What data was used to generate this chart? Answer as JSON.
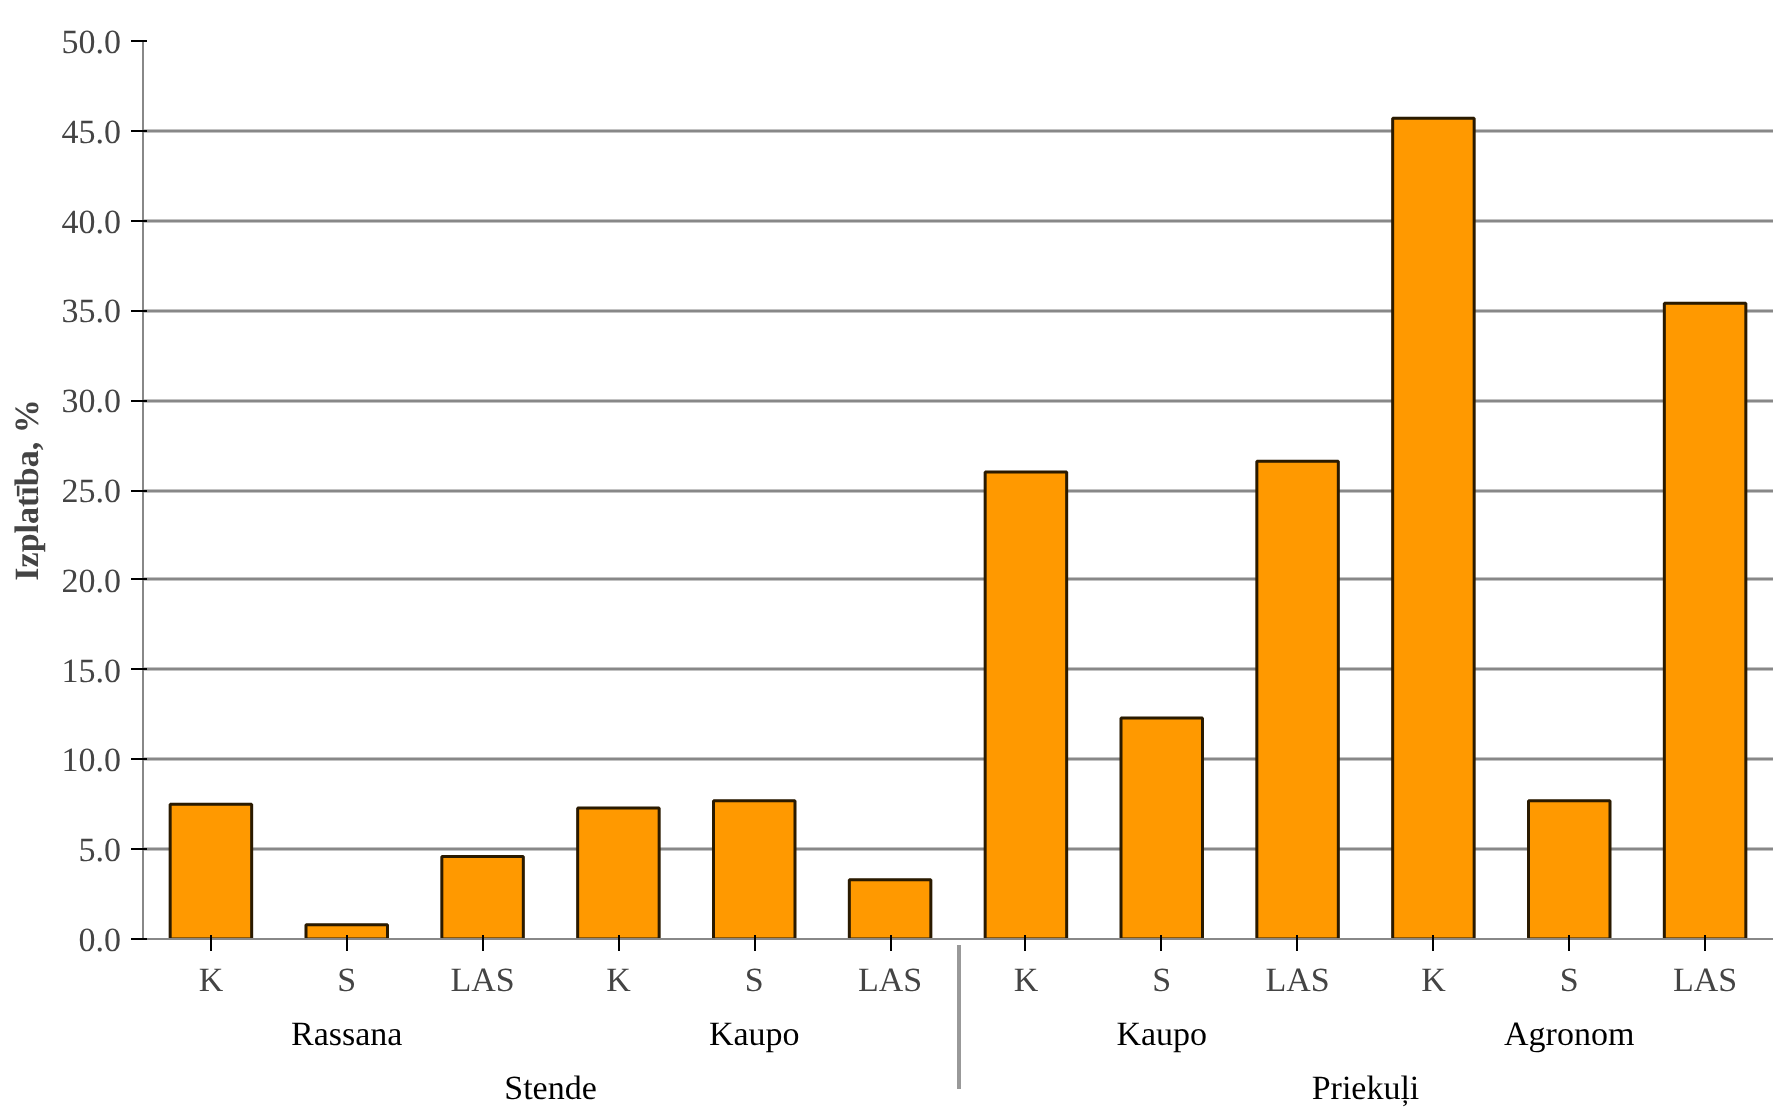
{
  "chart_data": {
    "type": "bar",
    "ylabel": "Izplatība, %",
    "categories": [
      "K",
      "S",
      "LAS",
      "K",
      "S",
      "LAS",
      "K",
      "S",
      "LAS",
      "K",
      "S",
      "LAS"
    ],
    "annotations": [
      "Rassana",
      "Kaupo",
      "Kaupo",
      "Agronom",
      "Stende",
      "Priekuļi"
    ],
    "values": [
      7.5,
      0.8,
      4.6,
      7.3,
      7.7,
      3.3,
      26.0,
      12.3,
      26.6,
      45.7,
      7.7,
      35.4
    ],
    "color": "#ff9900",
    "ylim": [
      0,
      50
    ],
    "yticks": [
      {
        "value": 0,
        "label": "0.0"
      },
      {
        "value": 5,
        "label": "5.0"
      },
      {
        "value": 10,
        "label": "10.0"
      },
      {
        "value": 15,
        "label": "15.0"
      },
      {
        "value": 20,
        "label": "20.0"
      },
      {
        "value": 25,
        "label": "25.0"
      },
      {
        "value": 30,
        "label": "30.0"
      },
      {
        "value": 35,
        "label": "35.0"
      },
      {
        "value": 40,
        "label": "40.0"
      },
      {
        "value": 45,
        "label": "45.0"
      },
      {
        "value": 50,
        "label": "50.0"
      }
    ],
    "grid": "y"
  }
}
